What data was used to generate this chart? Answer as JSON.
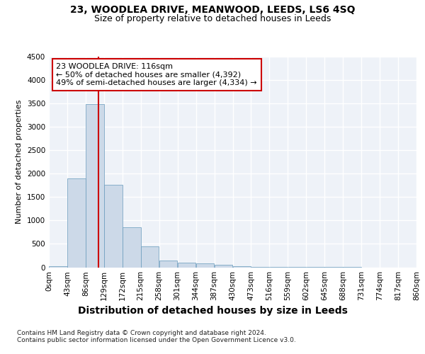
{
  "title": "23, WOODLEA DRIVE, MEANWOOD, LEEDS, LS6 4SQ",
  "subtitle": "Size of property relative to detached houses in Leeds",
  "xlabel": "Distribution of detached houses by size in Leeds",
  "ylabel": "Number of detached properties",
  "bar_color": "#ccd9e8",
  "bar_edge_color": "#6699bb",
  "background_color": "#eef2f8",
  "grid_color": "#ffffff",
  "bin_edges": [
    0,
    43,
    86,
    129,
    172,
    215,
    258,
    301,
    344,
    387,
    430,
    473,
    516,
    559,
    602,
    645,
    688,
    731,
    774,
    817,
    860
  ],
  "bar_heights": [
    30,
    1900,
    3480,
    1760,
    850,
    440,
    150,
    100,
    80,
    55,
    30,
    15,
    5,
    3,
    2,
    1,
    1,
    0,
    0,
    0
  ],
  "property_size": 116,
  "vline_color": "#cc0000",
  "annotation_text": "23 WOODLEA DRIVE: 116sqm\n← 50% of detached houses are smaller (4,392)\n49% of semi-detached houses are larger (4,334) →",
  "annotation_box_color": "#cc0000",
  "ylim": [
    0,
    4500
  ],
  "yticks": [
    0,
    500,
    1000,
    1500,
    2000,
    2500,
    3000,
    3500,
    4000,
    4500
  ],
  "footnote1": "Contains HM Land Registry data © Crown copyright and database right 2024.",
  "footnote2": "Contains public sector information licensed under the Open Government Licence v3.0.",
  "title_fontsize": 10,
  "subtitle_fontsize": 9,
  "xlabel_fontsize": 10,
  "ylabel_fontsize": 8,
  "tick_fontsize": 7.5,
  "annotation_fontsize": 8,
  "footnote_fontsize": 6.5
}
